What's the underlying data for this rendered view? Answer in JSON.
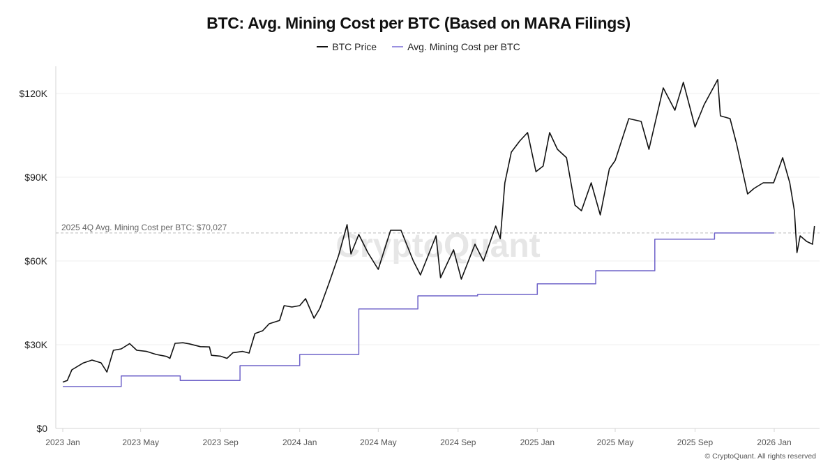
{
  "chart_data": {
    "type": "line",
    "title": "BTC: Avg. Mining Cost per BTC (Based on MARA Filings)",
    "xlabel": "",
    "ylabel": "",
    "ylim": [
      0,
      130000
    ],
    "grid": true,
    "legend_placement": "top-center",
    "y_ticks": [
      {
        "value": 0,
        "label": "$0"
      },
      {
        "value": 30000,
        "label": "$30K"
      },
      {
        "value": 60000,
        "label": "$60K"
      },
      {
        "value": 90000,
        "label": "$90K"
      },
      {
        "value": 120000,
        "label": "$120K"
      }
    ],
    "x_ticks": [
      {
        "date": "2023-01-01",
        "label": "2023 Jan"
      },
      {
        "date": "2023-05-01",
        "label": "2023 May"
      },
      {
        "date": "2023-09-01",
        "label": "2023 Sep"
      },
      {
        "date": "2024-01-01",
        "label": "2024 Jan"
      },
      {
        "date": "2024-05-01",
        "label": "2024 May"
      },
      {
        "date": "2024-09-01",
        "label": "2024 Sep"
      },
      {
        "date": "2025-01-01",
        "label": "2025 Jan"
      },
      {
        "date": "2025-05-01",
        "label": "2025 May"
      },
      {
        "date": "2025-09-01",
        "label": "2025 Sep"
      },
      {
        "date": "2026-01-01",
        "label": "2026 Jan"
      }
    ],
    "annotation": {
      "label": "2025 4Q Avg. Mining Cost per BTC: $70,027",
      "value": 70027
    },
    "series": [
      {
        "name": "BTC Price",
        "color": "#111111",
        "step": false,
        "points": [
          [
            "2023-01-01",
            16600
          ],
          [
            "2023-01-08",
            17200
          ],
          [
            "2023-01-15",
            21000
          ],
          [
            "2023-02-01",
            23400
          ],
          [
            "2023-02-15",
            24500
          ],
          [
            "2023-03-01",
            23500
          ],
          [
            "2023-03-10",
            20200
          ],
          [
            "2023-03-20",
            28000
          ],
          [
            "2023-04-01",
            28500
          ],
          [
            "2023-04-14",
            30400
          ],
          [
            "2023-04-25",
            28000
          ],
          [
            "2023-05-10",
            27600
          ],
          [
            "2023-05-25",
            26500
          ],
          [
            "2023-06-10",
            25800
          ],
          [
            "2023-06-15",
            25100
          ],
          [
            "2023-06-23",
            30500
          ],
          [
            "2023-07-05",
            30700
          ],
          [
            "2023-07-15",
            30300
          ],
          [
            "2023-08-01",
            29300
          ],
          [
            "2023-08-15",
            29200
          ],
          [
            "2023-08-18",
            26200
          ],
          [
            "2023-09-01",
            25900
          ],
          [
            "2023-09-11",
            25100
          ],
          [
            "2023-09-20",
            27100
          ],
          [
            "2023-10-05",
            27600
          ],
          [
            "2023-10-15",
            27000
          ],
          [
            "2023-10-24",
            34000
          ],
          [
            "2023-11-05",
            35000
          ],
          [
            "2023-11-15",
            37500
          ],
          [
            "2023-12-01",
            38700
          ],
          [
            "2023-12-08",
            44000
          ],
          [
            "2023-12-20",
            43500
          ],
          [
            "2024-01-01",
            44000
          ],
          [
            "2024-01-10",
            46500
          ],
          [
            "2024-01-23",
            39500
          ],
          [
            "2024-02-01",
            43000
          ],
          [
            "2024-02-15",
            52000
          ],
          [
            "2024-03-01",
            62000
          ],
          [
            "2024-03-14",
            73000
          ],
          [
            "2024-03-20",
            62500
          ],
          [
            "2024-04-01",
            69500
          ],
          [
            "2024-04-15",
            63000
          ],
          [
            "2024-05-01",
            57000
          ],
          [
            "2024-05-20",
            71000
          ],
          [
            "2024-06-05",
            71000
          ],
          [
            "2024-06-24",
            60000
          ],
          [
            "2024-07-05",
            55000
          ],
          [
            "2024-07-29",
            69000
          ],
          [
            "2024-08-05",
            54000
          ],
          [
            "2024-08-25",
            64000
          ],
          [
            "2024-09-06",
            53500
          ],
          [
            "2024-09-27",
            66000
          ],
          [
            "2024-10-10",
            60000
          ],
          [
            "2024-10-29",
            72500
          ],
          [
            "2024-11-05",
            68000
          ],
          [
            "2024-11-12",
            88000
          ],
          [
            "2024-11-22",
            99000
          ],
          [
            "2024-12-05",
            103000
          ],
          [
            "2024-12-17",
            106000
          ],
          [
            "2024-12-30",
            92000
          ],
          [
            "2025-01-10",
            94000
          ],
          [
            "2025-01-20",
            106000
          ],
          [
            "2025-02-01",
            100000
          ],
          [
            "2025-02-15",
            97000
          ],
          [
            "2025-02-28",
            80000
          ],
          [
            "2025-03-10",
            78000
          ],
          [
            "2025-03-25",
            88000
          ],
          [
            "2025-04-08",
            76500
          ],
          [
            "2025-04-22",
            93000
          ],
          [
            "2025-05-01",
            96000
          ],
          [
            "2025-05-22",
            111000
          ],
          [
            "2025-06-10",
            110000
          ],
          [
            "2025-06-22",
            100000
          ],
          [
            "2025-07-14",
            122000
          ],
          [
            "2025-08-01",
            114000
          ],
          [
            "2025-08-14",
            124000
          ],
          [
            "2025-09-01",
            108000
          ],
          [
            "2025-09-15",
            116000
          ],
          [
            "2025-10-06",
            125000
          ],
          [
            "2025-10-10",
            112000
          ],
          [
            "2025-10-25",
            111000
          ],
          [
            "2025-11-04",
            102000
          ],
          [
            "2025-11-21",
            84000
          ],
          [
            "2025-12-01",
            86000
          ],
          [
            "2025-12-15",
            88000
          ],
          [
            "2025-12-31",
            88000
          ],
          [
            "2026-01-14",
            97000
          ],
          [
            "2026-01-25",
            88000
          ],
          [
            "2026-02-01",
            78000
          ],
          [
            "2026-02-05",
            63000
          ],
          [
            "2026-02-10",
            69000
          ],
          [
            "2026-02-20",
            67000
          ],
          [
            "2026-03-01",
            66000
          ],
          [
            "2026-03-04",
            72500
          ]
        ]
      },
      {
        "name": "Avg. Mining Cost per BTC",
        "color": "#6f63c9",
        "step": true,
        "points": [
          [
            "2023-01-01",
            15000
          ],
          [
            "2023-04-01",
            18800
          ],
          [
            "2023-07-01",
            17200
          ],
          [
            "2023-10-01",
            22500
          ],
          [
            "2024-01-01",
            26500
          ],
          [
            "2024-04-01",
            42800
          ],
          [
            "2024-07-01",
            47500
          ],
          [
            "2024-10-01",
            48000
          ],
          [
            "2025-01-01",
            51800
          ],
          [
            "2025-04-01",
            56500
          ],
          [
            "2025-07-01",
            67800
          ],
          [
            "2025-10-01",
            70027
          ],
          [
            "2026-01-01",
            70027
          ]
        ]
      }
    ]
  },
  "watermark": "CryptoQuant",
  "footer": "© CryptoQuant. All rights reserved"
}
